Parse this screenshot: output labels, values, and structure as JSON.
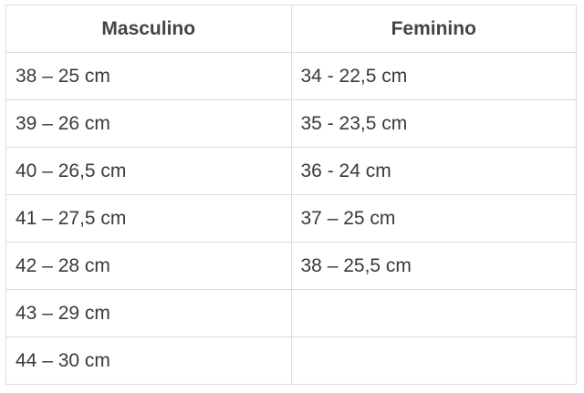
{
  "table": {
    "headers": [
      "Masculino",
      "Feminino"
    ],
    "rows": [
      [
        "38 – 25 cm",
        "34 - 22,5 cm"
      ],
      [
        "39 – 26 cm",
        "35 - 23,5 cm"
      ],
      [
        "40 – 26,5 cm",
        "36 - 24 cm"
      ],
      [
        "41 – 27,5 cm",
        "37 – 25 cm"
      ],
      [
        "42 – 28 cm",
        "38 – 25,5 cm"
      ],
      [
        "43 – 29 cm",
        null
      ],
      [
        "44 – 30 cm",
        null
      ]
    ]
  }
}
